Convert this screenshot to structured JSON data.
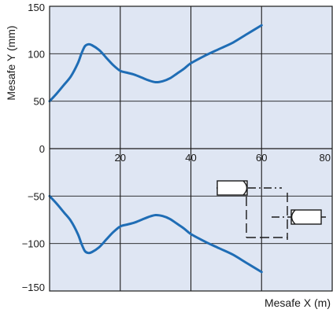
{
  "chart_data": {
    "type": "line",
    "xlabel": "Mesafe X (m)",
    "ylabel": "Mesafe Y (mm)",
    "xlim": [
      0,
      80
    ],
    "ylim": [
      -150,
      150
    ],
    "x_ticks": [
      20,
      40,
      60,
      80
    ],
    "y_ticks": [
      150,
      100,
      50,
      0,
      -50,
      -100,
      -150
    ],
    "x_tick_labels": [
      "20",
      "40",
      "60",
      "80"
    ],
    "y_tick_labels": [
      "150",
      "100",
      "50",
      "0",
      "−50",
      "−100",
      "−150"
    ],
    "grid": true,
    "series": [
      {
        "x": [
          0,
          2,
          4,
          6,
          8,
          9,
          10,
          11,
          12,
          14,
          16,
          18,
          20,
          22,
          24,
          26,
          28,
          30,
          32,
          34,
          36,
          38,
          40,
          44,
          48,
          52,
          56,
          60
        ],
        "values": [
          50,
          58,
          67,
          76,
          90,
          100,
          108,
          110,
          109,
          104,
          96,
          88,
          82,
          80,
          78,
          75,
          72,
          70,
          71,
          74,
          79,
          84,
          90,
          98,
          105,
          112,
          121,
          130
        ]
      },
      {
        "x": [
          0,
          2,
          4,
          6,
          8,
          9,
          10,
          11,
          12,
          14,
          16,
          18,
          20,
          22,
          24,
          26,
          28,
          30,
          32,
          34,
          36,
          38,
          40,
          44,
          48,
          52,
          56,
          60
        ],
        "values": [
          -50,
          -58,
          -67,
          -76,
          -90,
          -100,
          -108,
          -110,
          -109,
          -104,
          -96,
          -88,
          -82,
          -80,
          -78,
          -75,
          -72,
          -70,
          -71,
          -74,
          -79,
          -84,
          -90,
          -98,
          -105,
          -112,
          -121,
          -130
        ]
      }
    ]
  },
  "style": {
    "plot_background": "#dfe6f3",
    "line_color": "#1f6db5",
    "grid_color": "#1a1a1a",
    "inset_color": "#1a1a1a"
  }
}
